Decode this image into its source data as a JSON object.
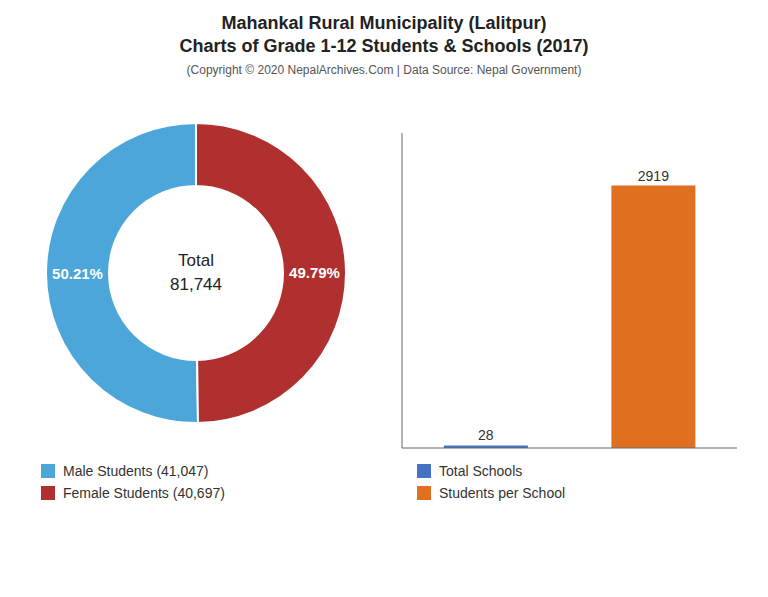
{
  "title": "Mahankal Rural Municipality (Lalitpur)\nCharts of Grade 1-12 Students & Schools (2017)",
  "subtitle": "(Copyright © 2020 NepalArchives.Com | Data Source: Nepal Government)",
  "chart_data": [
    {
      "type": "pie",
      "categories": [
        "Male Students (41,047)",
        "Female Students (40,697)"
      ],
      "values": [
        50.21,
        49.79
      ],
      "value_labels": [
        "50.21%",
        "49.79%"
      ],
      "colors": [
        "#4da6d9",
        "#b03030"
      ],
      "data_labels": true,
      "annotations": [
        "Total",
        "81,744"
      ],
      "legend": "bottom"
    },
    {
      "type": "bar",
      "categories": [
        "Total Schools",
        "Students per School"
      ],
      "values": [
        28,
        2919
      ],
      "colors": [
        "#4472c4",
        "#e07020"
      ],
      "ylim": [
        0,
        3502.8
      ],
      "data_labels": true,
      "tick_labels": false,
      "legend": "bottom"
    }
  ]
}
